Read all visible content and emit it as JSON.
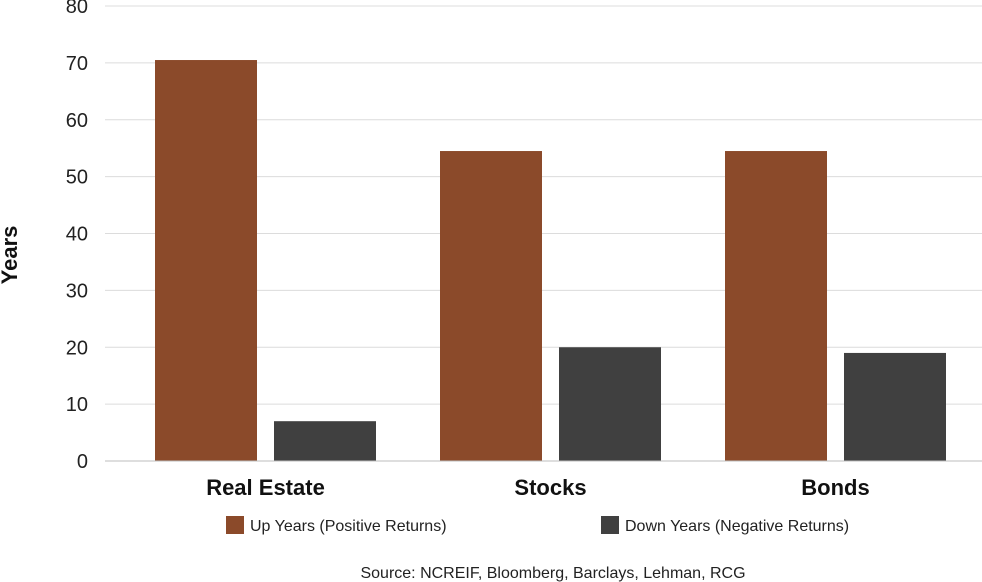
{
  "chart_data": {
    "type": "bar",
    "categories": [
      "Real Estate",
      "Stocks",
      "Bonds"
    ],
    "series": [
      {
        "name": "Up Years (Positive Returns)",
        "values": [
          70.5,
          54.5,
          54.5
        ],
        "color": "#8B4A2A"
      },
      {
        "name": "Down Years (Negative Returns)",
        "values": [
          7,
          20,
          19
        ],
        "color": "#404040"
      }
    ],
    "ylabel": "Years",
    "xlabel": "",
    "ylim": [
      0,
      80
    ],
    "yticks": [
      0,
      10,
      20,
      30,
      40,
      50,
      60,
      70,
      80
    ],
    "grid": true,
    "legend": "bottom",
    "source": "Source: NCREIF, Bloomberg, Barclays, Lehman, RCG"
  }
}
